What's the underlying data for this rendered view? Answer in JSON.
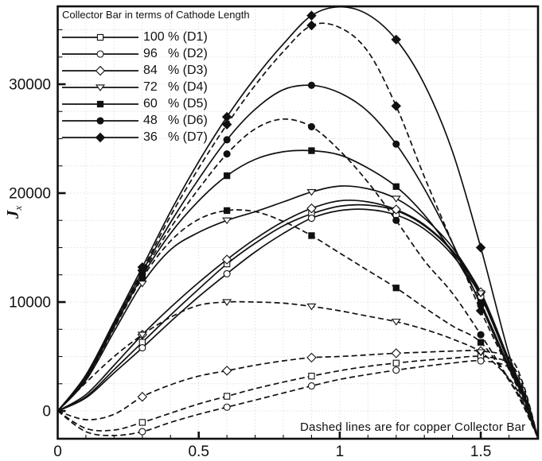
{
  "figure": {
    "title": "Collector Bar in terms of Cathode Length",
    "annotation": "Dashed lines are for copper Collector Bar",
    "y_axis_label": {
      "main": "J",
      "sub": "x"
    },
    "legend": [
      {
        "pct": "100",
        "rest": "% (D1)",
        "marker": "square",
        "filled": false
      },
      {
        "pct": "96",
        "rest": "% (D2)",
        "marker": "circle",
        "filled": false
      },
      {
        "pct": "84",
        "rest": "% (D3)",
        "marker": "diamond",
        "filled": false
      },
      {
        "pct": "72",
        "rest": "% (D4)",
        "marker": "triangle-down",
        "filled": false
      },
      {
        "pct": "60",
        "rest": "% (D5)",
        "marker": "square",
        "filled": true
      },
      {
        "pct": "48",
        "rest": "% (D6)",
        "marker": "circle",
        "filled": true
      },
      {
        "pct": "36",
        "rest": "% (D7)",
        "marker": "diamond",
        "filled": true
      }
    ],
    "colors": {
      "ink": "#111111",
      "grid": "#e0e0e0",
      "background": "#ffffff"
    }
  },
  "chart_data": {
    "type": "line",
    "title": "Collector Bar in terms of Cathode Length",
    "xlabel": "",
    "ylabel": "Jx",
    "x_axis": {
      "range": [
        0,
        1.703
      ],
      "major_ticks": [
        0,
        0.5,
        1,
        1.5
      ],
      "major_labels": [
        "0",
        "0.5",
        "1",
        "1.5"
      ],
      "minor_step": 0.1
    },
    "y_axis": {
      "range": [
        -2550,
        37150
      ],
      "major_ticks": [
        0,
        10000,
        20000,
        30000
      ],
      "major_labels": [
        "0",
        "10000",
        "20000",
        "30000"
      ],
      "minor_step": 2500
    },
    "grid": "dotted at every minor tick",
    "legend_position": "top-left inside",
    "x": [
      0,
      0.1,
      0.2,
      0.3,
      0.4,
      0.5,
      0.6,
      0.7,
      0.8,
      0.9,
      1.0,
      1.1,
      1.2,
      1.3,
      1.4,
      1.5,
      1.6,
      1.65,
      1.703
    ],
    "marker_indices": [
      3,
      6,
      9,
      12,
      15
    ],
    "series": [
      {
        "id": "D1",
        "name": "100 % (D1)",
        "marker": "square",
        "filled": false,
        "line_style": "solid",
        "values": [
          0,
          1300,
          3800,
          6300,
          8800,
          11200,
          13500,
          15400,
          17000,
          18100,
          18800,
          18900,
          18400,
          17000,
          14600,
          10700,
          4500,
          1600,
          -2500
        ]
      },
      {
        "id": "D2",
        "name": "96 % (D2)",
        "marker": "circle",
        "filled": false,
        "line_style": "solid",
        "values": [
          0,
          1200,
          3500,
          5800,
          8200,
          10500,
          12600,
          14600,
          16300,
          17700,
          18400,
          18500,
          18000,
          16700,
          14300,
          10500,
          4400,
          1500,
          -2500
        ]
      },
      {
        "id": "D3",
        "name": "84 % (D3)",
        "marker": "diamond",
        "filled": false,
        "line_style": "solid",
        "values": [
          0,
          1500,
          4200,
          7000,
          9500,
          11800,
          13900,
          15800,
          17400,
          18600,
          19300,
          19200,
          18500,
          17100,
          14700,
          10900,
          4700,
          1800,
          -2500
        ]
      },
      {
        "id": "D4",
        "name": "72 % (D4)",
        "marker": "triangle-down",
        "filled": false,
        "line_style": "solid",
        "values": [
          0,
          2800,
          7300,
          11700,
          14800,
          16400,
          17500,
          18300,
          19200,
          20100,
          20650,
          20400,
          19500,
          17700,
          15000,
          10800,
          4600,
          1700,
          -2500
        ]
      },
      {
        "id": "D5",
        "name": "60 % (D5)",
        "marker": "square",
        "filled": true,
        "line_style": "solid",
        "values": [
          0,
          3000,
          7700,
          12400,
          16300,
          19300,
          21600,
          23100,
          23800,
          23900,
          23500,
          22300,
          20600,
          18000,
          14500,
          9900,
          4100,
          1500,
          -2500
        ]
      },
      {
        "id": "D6",
        "name": "48 % (D6)",
        "marker": "circle",
        "filled": true,
        "line_style": "solid",
        "values": [
          0,
          3150,
          7950,
          12800,
          17300,
          21300,
          24900,
          27700,
          29500,
          29900,
          29200,
          27500,
          24500,
          20400,
          15400,
          9700,
          3900,
          1300,
          -2500
        ]
      },
      {
        "id": "D7",
        "name": "36 % (D7)",
        "marker": "diamond",
        "filled": true,
        "line_style": "solid",
        "values": [
          0,
          3300,
          8200,
          13200,
          18300,
          22900,
          27000,
          30600,
          33700,
          36300,
          37100,
          36400,
          34100,
          30000,
          23800,
          15000,
          5200,
          1800,
          -2500
        ]
      },
      {
        "id": "D1",
        "name": "100 % (D1)",
        "marker": "square",
        "filled": false,
        "line_style": "dashed",
        "values": [
          0,
          -1600,
          -1750,
          -1050,
          -200,
          650,
          1350,
          2050,
          2650,
          3200,
          3700,
          4100,
          4400,
          4650,
          4850,
          5000,
          4400,
          2200,
          -2500
        ]
      },
      {
        "id": "D2",
        "name": "96 % (D2)",
        "marker": "circle",
        "filled": false,
        "line_style": "dashed",
        "values": [
          0,
          -1900,
          -2250,
          -1900,
          -1050,
          -300,
          350,
          1000,
          1650,
          2300,
          2900,
          3350,
          3750,
          4100,
          4400,
          4600,
          4000,
          1900,
          -2500
        ]
      },
      {
        "id": "D3",
        "name": "84 % (D3)",
        "marker": "diamond",
        "filled": false,
        "line_style": "dashed",
        "values": [
          0,
          -800,
          -300,
          1300,
          2400,
          3200,
          3700,
          4200,
          4600,
          4900,
          5000,
          5150,
          5300,
          5400,
          5500,
          5500,
          4900,
          2500,
          -2500
        ]
      },
      {
        "id": "D4",
        "name": "72 % (D4)",
        "marker": "triangle-down",
        "filled": false,
        "line_style": "dashed",
        "values": [
          0,
          2600,
          5000,
          7000,
          8600,
          9700,
          10000,
          10000,
          9900,
          9600,
          9200,
          8700,
          8200,
          7500,
          6600,
          5400,
          3000,
          800,
          -2500
        ]
      },
      {
        "id": "D5",
        "name": "60 % (D5)",
        "marker": "square",
        "filled": true,
        "line_style": "dashed",
        "values": [
          0,
          2950,
          7600,
          12200,
          15600,
          17600,
          18400,
          18300,
          17400,
          16100,
          14500,
          12900,
          11300,
          9500,
          7800,
          6300,
          2800,
          500,
          -2500
        ]
      },
      {
        "id": "D6",
        "name": "48 % (D6)",
        "marker": "circle",
        "filled": true,
        "line_style": "dashed",
        "values": [
          0,
          3100,
          7850,
          12600,
          16800,
          20400,
          23600,
          25900,
          26800,
          26100,
          23900,
          21000,
          17500,
          13800,
          10800,
          7000,
          2900,
          700,
          -2500
        ]
      },
      {
        "id": "D7",
        "name": "36 % (D7)",
        "marker": "diamond",
        "filled": true,
        "line_style": "dashed",
        "values": [
          0,
          3200,
          8000,
          12900,
          17900,
          22300,
          26300,
          29900,
          33000,
          35400,
          35200,
          33000,
          28000,
          21500,
          15400,
          9200,
          3800,
          1000,
          -2500
        ]
      }
    ]
  }
}
